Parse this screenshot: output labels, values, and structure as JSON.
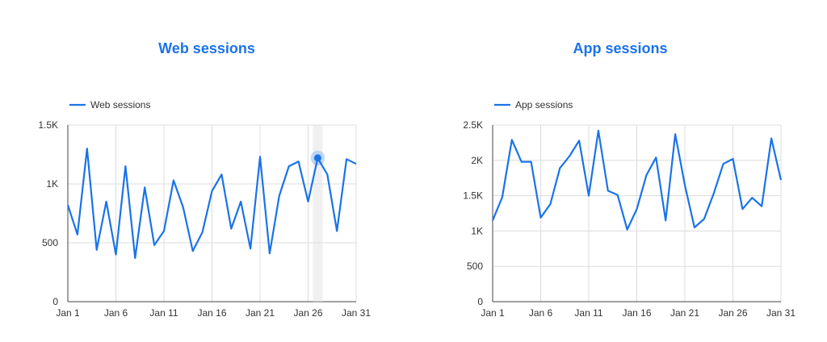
{
  "colors": {
    "series": "#1a73e8",
    "grid": "#dcdcdc",
    "axis": "#444444",
    "title": "#1a73e8"
  },
  "chart_data": [
    {
      "type": "line",
      "title": "Web sessions",
      "legend_position": "top-left",
      "grid": true,
      "x_labels": [
        "Jan 1",
        "Jan 6",
        "Jan 11",
        "Jan 16",
        "Jan 21",
        "Jan 26",
        "Jan 31"
      ],
      "y_ticks": [
        0,
        500,
        1000,
        1500
      ],
      "y_tick_labels": [
        "0",
        "500",
        "1K",
        "1.5K"
      ],
      "ylim": [
        0,
        1500
      ],
      "xlim": [
        1,
        31
      ],
      "highlight_day": 27,
      "series": [
        {
          "name": "Web sessions",
          "x": [
            1,
            2,
            3,
            4,
            5,
            6,
            7,
            8,
            9,
            10,
            11,
            12,
            13,
            14,
            15,
            16,
            17,
            18,
            19,
            20,
            21,
            22,
            23,
            24,
            25,
            26,
            27,
            28,
            29,
            30,
            31
          ],
          "values": [
            820,
            570,
            1300,
            440,
            850,
            400,
            1150,
            370,
            970,
            480,
            600,
            1030,
            800,
            430,
            590,
            940,
            1080,
            620,
            850,
            450,
            1230,
            410,
            900,
            1150,
            1190,
            850,
            1220,
            1080,
            600,
            1210,
            1170
          ]
        }
      ]
    },
    {
      "type": "line",
      "title": "App sessions",
      "legend_position": "top-left",
      "grid": true,
      "x_labels": [
        "Jan 1",
        "Jan 6",
        "Jan 11",
        "Jan 16",
        "Jan 21",
        "Jan 26",
        "Jan 31"
      ],
      "y_ticks": [
        0,
        500,
        1000,
        1500,
        2000,
        2500
      ],
      "y_tick_labels": [
        "0",
        "500",
        "1K",
        "1.5K",
        "2K",
        "2.5K"
      ],
      "ylim": [
        0,
        2500
      ],
      "xlim": [
        1,
        31
      ],
      "series": [
        {
          "name": "App sessions",
          "x": [
            1,
            2,
            3,
            4,
            5,
            6,
            7,
            8,
            9,
            10,
            11,
            12,
            13,
            14,
            15,
            16,
            17,
            18,
            19,
            20,
            21,
            22,
            23,
            24,
            25,
            26,
            27,
            28,
            29,
            30,
            31
          ],
          "values": [
            1150,
            1480,
            2290,
            1980,
            1980,
            1190,
            1380,
            1890,
            2060,
            2280,
            1500,
            2420,
            1570,
            1510,
            1020,
            1310,
            1790,
            2040,
            1150,
            2370,
            1650,
            1050,
            1170,
            1530,
            1950,
            2020,
            1310,
            1470,
            1350,
            2310,
            1720
          ]
        }
      ]
    }
  ]
}
